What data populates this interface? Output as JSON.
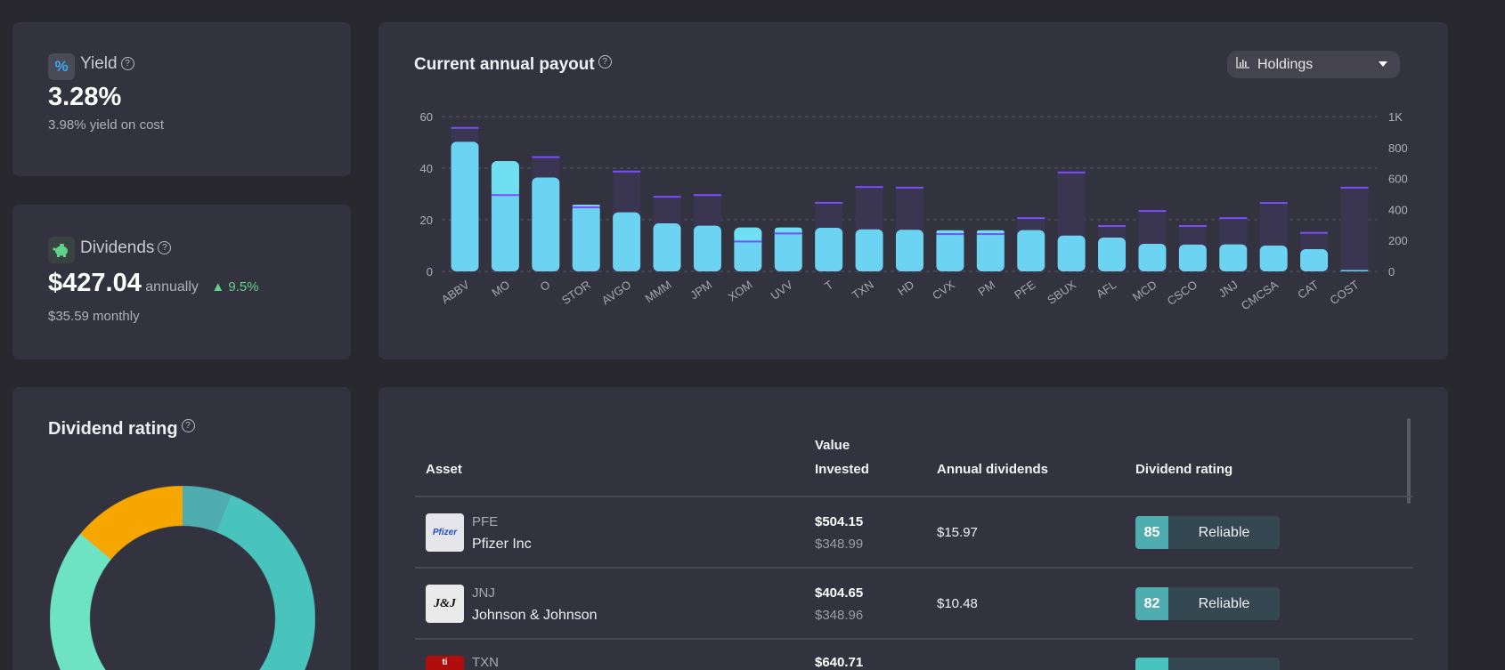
{
  "yield": {
    "label": "Yield",
    "value": "3.28%",
    "sub": "3.98% yield on cost",
    "icon": "percent-icon",
    "icon_color": "#3fa9f5"
  },
  "dividends": {
    "label": "Dividends",
    "value": "$427.04",
    "period": "annually",
    "change": "9.5%",
    "change_color": "#5fd38a",
    "sub": "$35.59 monthly",
    "icon": "piggy-bank-icon",
    "icon_color": "#5fd38a"
  },
  "rating_card": {
    "title": "Dividend rating"
  },
  "donut": {
    "segments": [
      {
        "share": 6,
        "color": "#4fadb0"
      },
      {
        "share": 47,
        "color": "#48c4bc"
      },
      {
        "share": 33,
        "color": "#6ee3c3"
      },
      {
        "share": 14,
        "color": "#f7a600"
      }
    ]
  },
  "payout": {
    "title": "Current annual payout",
    "dropdown": "Holdings",
    "dropdown_icon": "bar-chart-icon"
  },
  "chart_data": {
    "type": "bar",
    "categories": [
      "ABBV",
      "MO",
      "O",
      "STOR",
      "AVGO",
      "MMM",
      "JPM",
      "XOM",
      "UVV",
      "T",
      "TXN",
      "HD",
      "CVX",
      "PM",
      "PFE",
      "SBUX",
      "AFL",
      "MCD",
      "CSCO",
      "JNJ",
      "CMCSA",
      "CAT",
      "COST"
    ],
    "series": [
      {
        "axis": "left",
        "color": "#6dd3f3",
        "values": [
          50.2,
          42.7,
          36.4,
          25.8,
          22.9,
          18.6,
          17.7,
          17.0,
          17.0,
          16.9,
          16.3,
          16.1,
          15.9,
          15.9,
          15.97,
          13.9,
          13.1,
          10.7,
          10.4,
          10.48,
          10.0,
          8.6,
          0.3
        ]
      },
      {
        "axis": "right",
        "color": "#7c4dff",
        "values": [
          927,
          493,
          738,
          414,
          645,
          482,
          493,
          193,
          245,
          443,
          545,
          541,
          241,
          241,
          344,
          639,
          293,
          390,
          293,
          344,
          442,
          249,
          541
        ]
      }
    ],
    "left_axis": {
      "min": 0,
      "max": 60,
      "ticks": [
        "0",
        "20",
        "40",
        "60"
      ]
    },
    "right_axis": {
      "min": 0,
      "max": 1000,
      "ticks": [
        "0",
        "200",
        "400",
        "600",
        "800",
        "1K"
      ]
    },
    "grid": true
  },
  "table": {
    "headers": {
      "asset": "Asset",
      "value_1": "Value",
      "value_2": "Invested",
      "annual": "Annual dividends",
      "rating": "Dividend rating"
    },
    "rows": [
      {
        "ticker": "PFE",
        "name": "Pfizer Inc",
        "value": "$504.15",
        "cost": "$348.99",
        "annual": "$15.97",
        "score": "85",
        "rating": "Reliable",
        "logo": "Pfizer"
      },
      {
        "ticker": "JNJ",
        "name": "Johnson & Johnson",
        "value": "$404.65",
        "cost": "$348.96",
        "annual": "$10.48",
        "score": "82",
        "rating": "Reliable",
        "logo": "J&J"
      },
      {
        "ticker": "TXN",
        "value": "$640.71",
        "logo": "ti"
      }
    ]
  }
}
